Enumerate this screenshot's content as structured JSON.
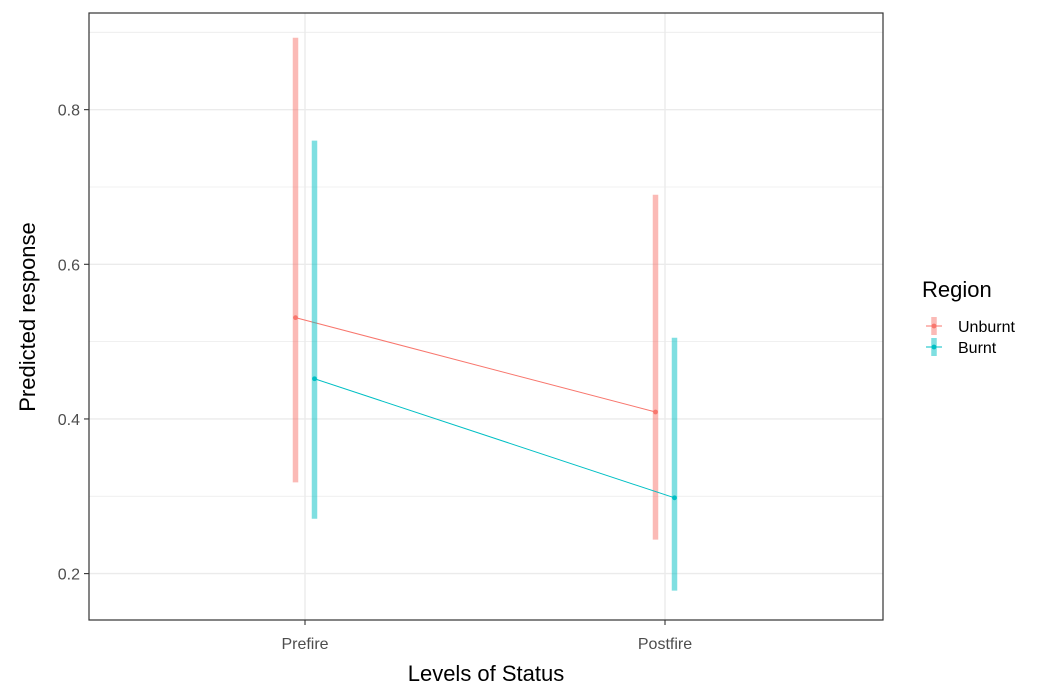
{
  "chart_data": {
    "type": "line",
    "title": "",
    "xlabel": "Levels of Status",
    "ylabel": "Predicted response",
    "categories": [
      "Prefire",
      "Postfire"
    ],
    "y_ticks": [
      "0.2",
      "0.4",
      "0.6",
      "0.8"
    ],
    "ylim": [
      0.14,
      0.925
    ],
    "grid": true,
    "legend": {
      "title": "Region",
      "placement": "right"
    },
    "series": [
      {
        "name": "Unburnt",
        "color": "#F8766D",
        "values": [
          0.531,
          0.409
        ],
        "lower": [
          0.318,
          0.244
        ],
        "upper": [
          0.893,
          0.69
        ]
      },
      {
        "name": "Burnt",
        "color": "#00BFC4",
        "values": [
          0.452,
          0.298
        ],
        "lower": [
          0.271,
          0.178
        ],
        "upper": [
          0.76,
          0.505
        ]
      }
    ]
  }
}
